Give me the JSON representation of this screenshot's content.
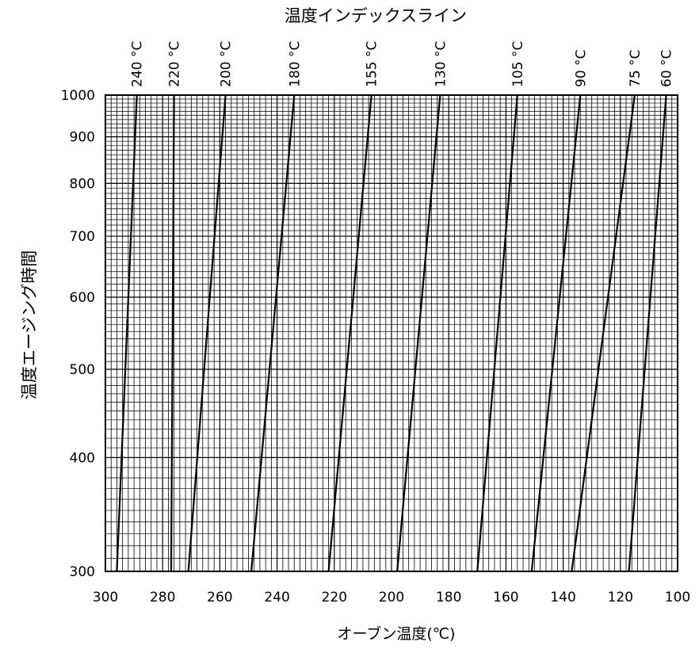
{
  "chart_data": {
    "type": "line",
    "title": "温度インデックスライン",
    "xlabel": "オーブン温度(℃)",
    "ylabel": "温度エージング時間",
    "x_reversed": true,
    "xlim": [
      300,
      100
    ],
    "ylim": [
      300,
      1000
    ],
    "y_scale": "log",
    "grid": true,
    "x_ticks": [
      "300",
      "280",
      "260",
      "240",
      "220",
      "200",
      "180",
      "160",
      "140",
      "120",
      "100"
    ],
    "y_ticks": [
      "300",
      "400",
      "500",
      "600",
      "700",
      "800",
      "900",
      "1000"
    ],
    "series": [
      {
        "name": "240 °C",
        "x": [
          296,
          289
        ],
        "y": [
          300,
          1000
        ]
      },
      {
        "name": "220 °C",
        "x": [
          277,
          276
        ],
        "y": [
          300,
          1000
        ]
      },
      {
        "name": "200 °C",
        "x": [
          271,
          258
        ],
        "y": [
          300,
          1000
        ]
      },
      {
        "name": "180 °C",
        "x": [
          249,
          234
        ],
        "y": [
          300,
          1000
        ]
      },
      {
        "name": "155 °C",
        "x": [
          222,
          207
        ],
        "y": [
          300,
          1000
        ]
      },
      {
        "name": "130 °C",
        "x": [
          198,
          183
        ],
        "y": [
          300,
          1000
        ]
      },
      {
        "name": "105 °C",
        "x": [
          170,
          156
        ],
        "y": [
          300,
          1000
        ]
      },
      {
        "name": "90 °C",
        "x": [
          151,
          134
        ],
        "y": [
          300,
          1000
        ]
      },
      {
        "name": "75 °C",
        "x": [
          137,
          115
        ],
        "y": [
          300,
          1000
        ]
      },
      {
        "name": "60 °C",
        "x": [
          117,
          104
        ],
        "y": [
          300,
          1000
        ]
      }
    ]
  }
}
